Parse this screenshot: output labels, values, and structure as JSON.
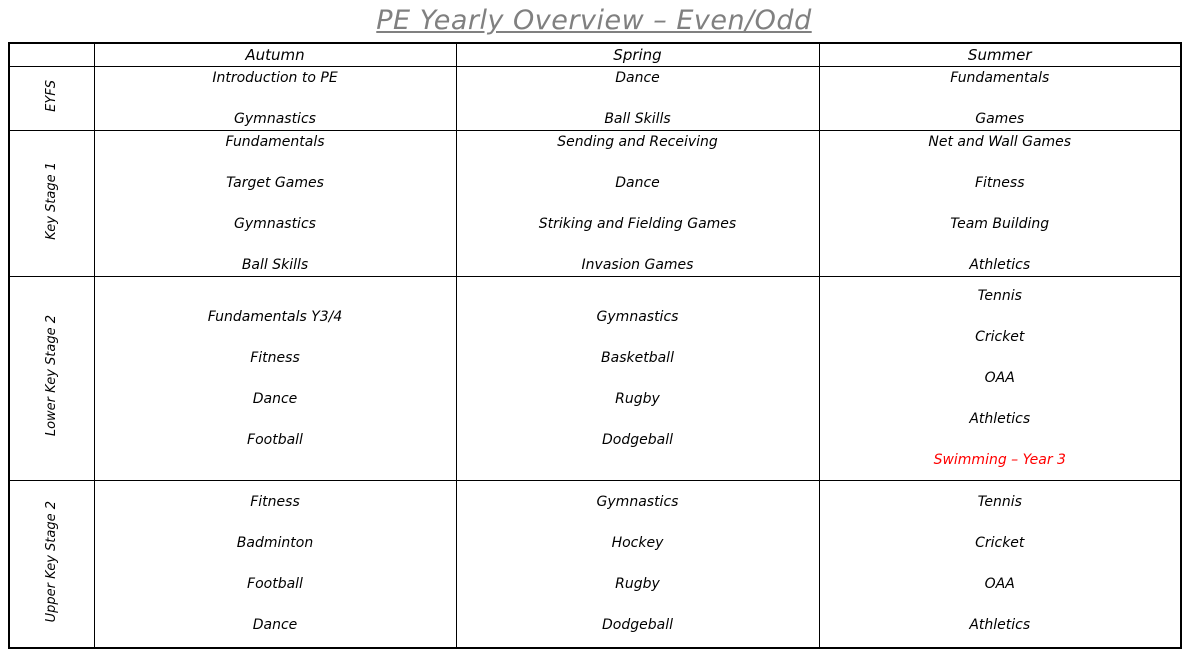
{
  "title": "PE Yearly Overview – Even/Odd",
  "colors": {
    "title": "#808080",
    "text": "#000000",
    "highlight_red": "#FF0000",
    "border": "#000000",
    "background": "#FFFFFF"
  },
  "table": {
    "corner_header": "",
    "columns": [
      "Autumn",
      "Spring",
      "Summer"
    ],
    "rows": [
      {
        "label": "EYFS",
        "cells": [
          {
            "season": "Autumn",
            "items": [
              {
                "text": "Introduction to PE"
              },
              {
                "text": "Gymnastics"
              }
            ]
          },
          {
            "season": "Spring",
            "items": [
              {
                "text": "Dance"
              },
              {
                "text": "Ball Skills"
              }
            ]
          },
          {
            "season": "Summer",
            "items": [
              {
                "text": "Fundamentals"
              },
              {
                "text": "Games"
              }
            ]
          }
        ]
      },
      {
        "label": "Key Stage 1",
        "cells": [
          {
            "season": "Autumn",
            "items": [
              {
                "text": "Fundamentals"
              },
              {
                "text": "Target Games"
              },
              {
                "text": "Gymnastics"
              },
              {
                "text": "Ball Skills"
              }
            ]
          },
          {
            "season": "Spring",
            "items": [
              {
                "text": "Sending and Receiving"
              },
              {
                "text": "Dance"
              },
              {
                "text": "Striking and Fielding Games"
              },
              {
                "text": "Invasion Games"
              }
            ]
          },
          {
            "season": "Summer",
            "items": [
              {
                "text": "Net and Wall Games"
              },
              {
                "text": "Fitness"
              },
              {
                "text": "Team Building"
              },
              {
                "text": "Athletics"
              }
            ]
          }
        ]
      },
      {
        "label": "Lower Key Stage 2",
        "cells": [
          {
            "season": "Autumn",
            "items": [
              {
                "text": "Fundamentals Y3/4"
              },
              {
                "text": "Fitness"
              },
              {
                "text": "Dance"
              },
              {
                "text": "Football"
              }
            ]
          },
          {
            "season": "Spring",
            "items": [
              {
                "text": "Gymnastics"
              },
              {
                "text": "Basketball"
              },
              {
                "text": "Rugby"
              },
              {
                "text": "Dodgeball"
              }
            ]
          },
          {
            "season": "Summer",
            "items": [
              {
                "text": "Tennis"
              },
              {
                "text": "Cricket"
              },
              {
                "text": "OAA"
              },
              {
                "text": "Athletics"
              },
              {
                "text": "Swimming – Year 3",
                "color": "#FF0000"
              }
            ]
          }
        ]
      },
      {
        "label": "Upper Key Stage 2",
        "cells": [
          {
            "season": "Autumn",
            "items": [
              {
                "text": "Fitness"
              },
              {
                "text": "Badminton"
              },
              {
                "text": "Football"
              },
              {
                "text": "Dance"
              }
            ]
          },
          {
            "season": "Spring",
            "items": [
              {
                "text": "Gymnastics"
              },
              {
                "text": "Hockey"
              },
              {
                "text": "Rugby"
              },
              {
                "text": "Dodgeball"
              }
            ]
          },
          {
            "season": "Summer",
            "items": [
              {
                "text": "Tennis"
              },
              {
                "text": "Cricket"
              },
              {
                "text": "OAA"
              },
              {
                "text": "Athletics"
              }
            ]
          }
        ]
      }
    ]
  }
}
